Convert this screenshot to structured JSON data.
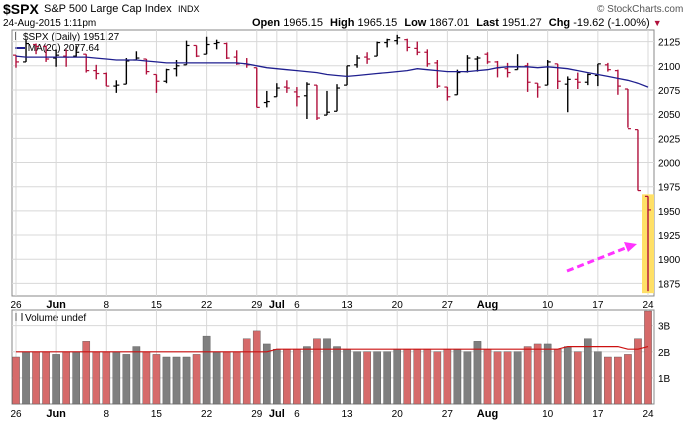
{
  "header": {
    "symbol": "$SPX",
    "name": "S&P 500 Large Cap Index",
    "exchange": "INDX",
    "datetime": "24-Aug-2015 1:11pm",
    "attribution": "© StockCharts.com",
    "open_label": "Open",
    "open_value": "1965.15",
    "high_label": "High",
    "high_value": "1965.15",
    "low_label": "Low",
    "low_value": "1867.01",
    "last_label": "Last",
    "last_value": "1951.27",
    "chg_label": "Chg",
    "chg_value": "-19.62 (-1.00%)",
    "chg_arrow": "▼"
  },
  "legend": {
    "price_label": "$SPX (Daily) 1951.27",
    "ma_label": "MA(20) 2077.64",
    "volume_label": "Volume undef"
  },
  "x_ticks": [
    "26",
    "Jun",
    "8",
    "15",
    "22",
    "29",
    "Jul",
    "6",
    "13",
    "20",
    "27",
    "Aug",
    "10",
    "17",
    "24"
  ],
  "colors": {
    "up": "#000000",
    "down": "#b0103c",
    "ma": "#1f1f8f",
    "vol_up": "#7f7f7f",
    "vol_down": "#d66a6a",
    "vol_ma": "#cc1111",
    "highlight": "#ffe066",
    "arrow": "#ff33ff",
    "grid": "#d8d8d8"
  },
  "chart_data": [
    {
      "type": "ohlc",
      "title": "$SPX (Daily) 1951.27",
      "ylim": [
        1862,
        2137
      ],
      "yticks": [
        1875,
        1900,
        1925,
        1950,
        1975,
        2000,
        2025,
        2050,
        2075,
        2100,
        2125
      ],
      "series": [
        {
          "name": "$SPX (Daily)",
          "ohlc": [
            {
              "x": "5/26",
              "o": 2111,
              "h": 2111,
              "l": 2098,
              "c": 2104
            },
            {
              "x": "5/27",
              "o": 2104,
              "h": 2127,
              "l": 2104,
              "c": 2123
            },
            {
              "x": "5/28",
              "o": 2122,
              "h": 2123,
              "l": 2112,
              "c": 2120
            },
            {
              "x": "5/29",
              "o": 2120,
              "h": 2121,
              "l": 2104,
              "c": 2107
            },
            {
              "x": "6/1",
              "o": 2108,
              "h": 2117,
              "l": 2099,
              "c": 2111
            },
            {
              "x": "6/2",
              "o": 2110,
              "h": 2117,
              "l": 2099,
              "c": 2109
            },
            {
              "x": "6/3",
              "o": 2110,
              "h": 2121,
              "l": 2109,
              "c": 2114
            },
            {
              "x": "6/4",
              "o": 2112,
              "h": 2112,
              "l": 2093,
              "c": 2095
            },
            {
              "x": "6/5",
              "o": 2095,
              "h": 2101,
              "l": 2086,
              "c": 2092
            },
            {
              "x": "6/8",
              "o": 2092,
              "h": 2093,
              "l": 2079,
              "c": 2079
            },
            {
              "x": "6/9",
              "o": 2079,
              "h": 2085,
              "l": 2072,
              "c": 2080
            },
            {
              "x": "6/10",
              "o": 2081,
              "h": 2108,
              "l": 2081,
              "c": 2105
            },
            {
              "x": "6/11",
              "o": 2106,
              "h": 2115,
              "l": 2106,
              "c": 2108
            },
            {
              "x": "6/12",
              "o": 2107,
              "h": 2107,
              "l": 2091,
              "c": 2094
            },
            {
              "x": "6/15",
              "o": 2091,
              "h": 2091,
              "l": 2072,
              "c": 2084
            },
            {
              "x": "6/16",
              "o": 2084,
              "h": 2097,
              "l": 2082,
              "c": 2096
            },
            {
              "x": "6/17",
              "o": 2097,
              "h": 2106,
              "l": 2089,
              "c": 2100
            },
            {
              "x": "6/18",
              "o": 2101,
              "h": 2126,
              "l": 2101,
              "c": 2121
            },
            {
              "x": "6/19",
              "o": 2121,
              "h": 2121,
              "l": 2109,
              "c": 2110
            },
            {
              "x": "6/22",
              "o": 2112,
              "h": 2130,
              "l": 2112,
              "c": 2122
            },
            {
              "x": "6/23",
              "o": 2123,
              "h": 2127,
              "l": 2117,
              "c": 2124
            },
            {
              "x": "6/24",
              "o": 2123,
              "h": 2124,
              "l": 2107,
              "c": 2108
            },
            {
              "x": "6/25",
              "o": 2109,
              "h": 2116,
              "l": 2101,
              "c": 2102
            },
            {
              "x": "6/26",
              "o": 2102,
              "h": 2108,
              "l": 2098,
              "c": 2101
            },
            {
              "x": "6/29",
              "o": 2098,
              "h": 2098,
              "l": 2057,
              "c": 2057
            },
            {
              "x": "6/30",
              "o": 2062,
              "h": 2074,
              "l": 2057,
              "c": 2063
            },
            {
              "x": "7/1",
              "o": 2068,
              "h": 2082,
              "l": 2068,
              "c": 2077
            },
            {
              "x": "7/2",
              "o": 2078,
              "h": 2085,
              "l": 2072,
              "c": 2077
            },
            {
              "x": "7/6",
              "o": 2073,
              "h": 2078,
              "l": 2058,
              "c": 2068
            },
            {
              "x": "7/7",
              "o": 2069,
              "h": 2083,
              "l": 2045,
              "c": 2081
            },
            {
              "x": "7/8",
              "o": 2080,
              "h": 2080,
              "l": 2044,
              "c": 2046
            },
            {
              "x": "7/9",
              "o": 2049,
              "h": 2074,
              "l": 2049,
              "c": 2052
            },
            {
              "x": "7/10",
              "o": 2053,
              "h": 2081,
              "l": 2053,
              "c": 2077
            },
            {
              "x": "7/13",
              "o": 2080,
              "h": 2100,
              "l": 2080,
              "c": 2100
            },
            {
              "x": "7/14",
              "o": 2101,
              "h": 2111,
              "l": 2098,
              "c": 2108
            },
            {
              "x": "7/15",
              "o": 2109,
              "h": 2114,
              "l": 2102,
              "c": 2107
            },
            {
              "x": "7/16",
              "o": 2110,
              "h": 2125,
              "l": 2110,
              "c": 2124
            },
            {
              "x": "7/17",
              "o": 2124,
              "h": 2128,
              "l": 2119,
              "c": 2127
            },
            {
              "x": "7/20",
              "o": 2126,
              "h": 2132,
              "l": 2122,
              "c": 2129
            },
            {
              "x": "7/21",
              "o": 2127,
              "h": 2128,
              "l": 2115,
              "c": 2119
            },
            {
              "x": "7/22",
              "o": 2118,
              "h": 2125,
              "l": 2111,
              "c": 2114
            },
            {
              "x": "7/23",
              "o": 2114,
              "h": 2117,
              "l": 2099,
              "c": 2102
            },
            {
              "x": "7/24",
              "o": 2103,
              "h": 2106,
              "l": 2077,
              "c": 2079
            },
            {
              "x": "7/27",
              "o": 2078,
              "h": 2078,
              "l": 2064,
              "c": 2068
            },
            {
              "x": "7/28",
              "o": 2070,
              "h": 2096,
              "l": 2070,
              "c": 2093
            },
            {
              "x": "7/29",
              "o": 2094,
              "h": 2111,
              "l": 2093,
              "c": 2108
            },
            {
              "x": "7/30",
              "o": 2107,
              "h": 2110,
              "l": 2094,
              "c": 2108
            },
            {
              "x": "7/31",
              "o": 2112,
              "h": 2114,
              "l": 2102,
              "c": 2104
            },
            {
              "x": "8/3",
              "o": 2104,
              "h": 2105,
              "l": 2088,
              "c": 2098
            },
            {
              "x": "8/4",
              "o": 2097,
              "h": 2103,
              "l": 2088,
              "c": 2093
            },
            {
              "x": "8/5",
              "o": 2096,
              "h": 2112,
              "l": 2096,
              "c": 2099
            },
            {
              "x": "8/6",
              "o": 2100,
              "h": 2103,
              "l": 2073,
              "c": 2083
            },
            {
              "x": "8/7",
              "o": 2082,
              "h": 2082,
              "l": 2067,
              "c": 2078
            },
            {
              "x": "8/10",
              "o": 2080,
              "h": 2106,
              "l": 2080,
              "c": 2104
            },
            {
              "x": "8/11",
              "o": 2102,
              "h": 2102,
              "l": 2076,
              "c": 2084
            },
            {
              "x": "8/12",
              "o": 2081,
              "h": 2089,
              "l": 2052,
              "c": 2086
            },
            {
              "x": "8/13",
              "o": 2086,
              "h": 2093,
              "l": 2076,
              "c": 2083
            },
            {
              "x": "8/14",
              "o": 2083,
              "h": 2092,
              "l": 2080,
              "c": 2091
            },
            {
              "x": "8/17",
              "o": 2090,
              "h": 2102,
              "l": 2079,
              "c": 2102
            },
            {
              "x": "8/18",
              "o": 2101,
              "h": 2103,
              "l": 2094,
              "c": 2096
            },
            {
              "x": "8/19",
              "o": 2095,
              "h": 2096,
              "l": 2070,
              "c": 2079
            },
            {
              "x": "8/20",
              "o": 2076,
              "h": 2076,
              "l": 2036,
              "c": 2035
            },
            {
              "x": "8/21",
              "o": 2034,
              "h": 2034,
              "l": 1971,
              "c": 1971
            },
            {
              "x": "8/24",
              "o": 1965,
              "h": 1965,
              "l": 1867,
              "c": 1951
            }
          ]
        },
        {
          "name": "MA(20)",
          "values": [
            2110,
            2109,
            2109,
            2109,
            2109,
            2109,
            2109,
            2109,
            2108,
            2107,
            2106,
            2106,
            2106,
            2105,
            2104,
            2103,
            2103,
            2103,
            2103,
            2103,
            2103,
            2103,
            2103,
            2102,
            2100,
            2098,
            2097,
            2096,
            2095,
            2094,
            2093,
            2091,
            2090,
            2089,
            2090,
            2091,
            2092,
            2093,
            2094,
            2095,
            2097,
            2096,
            2095,
            2094,
            2094,
            2094,
            2095,
            2096,
            2098,
            2099,
            2099,
            2099,
            2098,
            2099,
            2098,
            2097,
            2095,
            2093,
            2091,
            2089,
            2087,
            2085,
            2082,
            2078
          ]
        }
      ]
    },
    {
      "type": "bar",
      "title": "Volume undef",
      "ylim": [
        0,
        3.6
      ],
      "yticks_labels": [
        "1B",
        "2B",
        "3B"
      ],
      "yticks": [
        1,
        2,
        3
      ],
      "series": [
        {
          "name": "Volume",
          "values": [
            1.8,
            2.0,
            2.0,
            2.0,
            1.9,
            2.0,
            2.0,
            2.4,
            2.0,
            2.0,
            2.0,
            1.9,
            2.2,
            2.0,
            1.9,
            1.8,
            1.8,
            1.8,
            1.9,
            2.6,
            2.0,
            2.0,
            2.0,
            2.5,
            2.8,
            2.3,
            2.1,
            2.1,
            2.1,
            2.2,
            2.5,
            2.5,
            2.2,
            2.1,
            2.0,
            2.0,
            2.0,
            2.0,
            2.1,
            2.1,
            2.1,
            2.1,
            2.0,
            2.1,
            2.1,
            2.0,
            2.4,
            2.1,
            2.0,
            2.0,
            2.0,
            2.2,
            2.3,
            2.3,
            2.1,
            2.2,
            2.0,
            2.5,
            2.0,
            1.8,
            1.8,
            1.9,
            2.5,
            3.8
          ]
        },
        {
          "name": "Volume MA",
          "values": [
            2.0,
            2.0,
            2.0,
            2.0,
            2.0,
            2.0,
            2.0,
            2.0,
            2.0,
            2.0,
            2.0,
            2.0,
            2.0,
            2.0,
            2.0,
            2.0,
            2.0,
            2.0,
            2.0,
            2.0,
            2.0,
            2.0,
            2.0,
            2.0,
            2.0,
            2.0,
            2.1,
            2.1,
            2.1,
            2.1,
            2.1,
            2.1,
            2.1,
            2.1,
            2.1,
            2.1,
            2.1,
            2.1,
            2.1,
            2.1,
            2.1,
            2.1,
            2.1,
            2.1,
            2.1,
            2.1,
            2.1,
            2.1,
            2.1,
            2.1,
            2.1,
            2.1,
            2.1,
            2.1,
            2.1,
            2.2,
            2.2,
            2.2,
            2.2,
            2.2,
            2.2,
            2.1,
            2.1,
            2.2
          ]
        }
      ]
    }
  ]
}
